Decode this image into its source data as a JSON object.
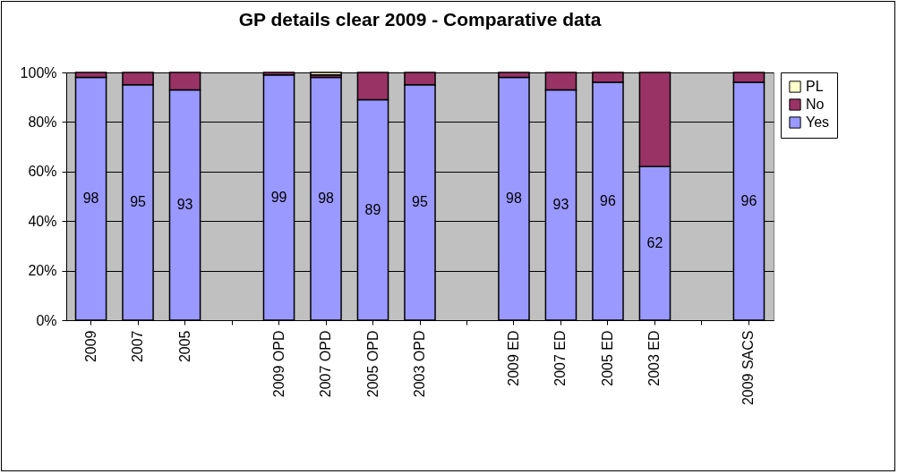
{
  "chart_data": {
    "type": "bar",
    "title": "GP details clear 2009 - Comparative data",
    "stacked": true,
    "categories": [
      "2009",
      "2007",
      "2005",
      null,
      "2009 OPD",
      "2007 OPD",
      "2005 OPD",
      "2003 OPD",
      null,
      "2009 ED",
      "2007 ED",
      "2005 ED",
      "2003 ED",
      null,
      "2009 SACS"
    ],
    "series": [
      {
        "name": "Yes",
        "color": "#9999ff",
        "values": [
          98,
          95,
          93,
          null,
          99,
          98,
          89,
          95,
          null,
          98,
          93,
          96,
          62,
          null,
          96
        ],
        "value_labels": [
          "98",
          "95",
          "93",
          null,
          "99",
          "98",
          "89",
          "95",
          null,
          "98",
          "93",
          "96",
          "62",
          null,
          "96"
        ]
      },
      {
        "name": "No",
        "color": "#993366",
        "values": [
          2,
          5,
          7,
          null,
          1,
          1,
          11,
          5,
          null,
          2,
          7,
          4,
          38,
          null,
          4
        ]
      },
      {
        "name": "PL",
        "color": "#ffffcc",
        "values": [
          null,
          null,
          null,
          null,
          null,
          1,
          null,
          null,
          null,
          null,
          null,
          null,
          null,
          null,
          null
        ]
      }
    ],
    "ylim": [
      0,
      100
    ],
    "yticks": [
      {
        "value": 0,
        "label": "0%"
      },
      {
        "value": 20,
        "label": "20%"
      },
      {
        "value": 40,
        "label": "40%"
      },
      {
        "value": 60,
        "label": "60%"
      },
      {
        "value": 80,
        "label": "80%"
      },
      {
        "value": 100,
        "label": "100%"
      }
    ],
    "grid": "y",
    "legend": "right"
  }
}
